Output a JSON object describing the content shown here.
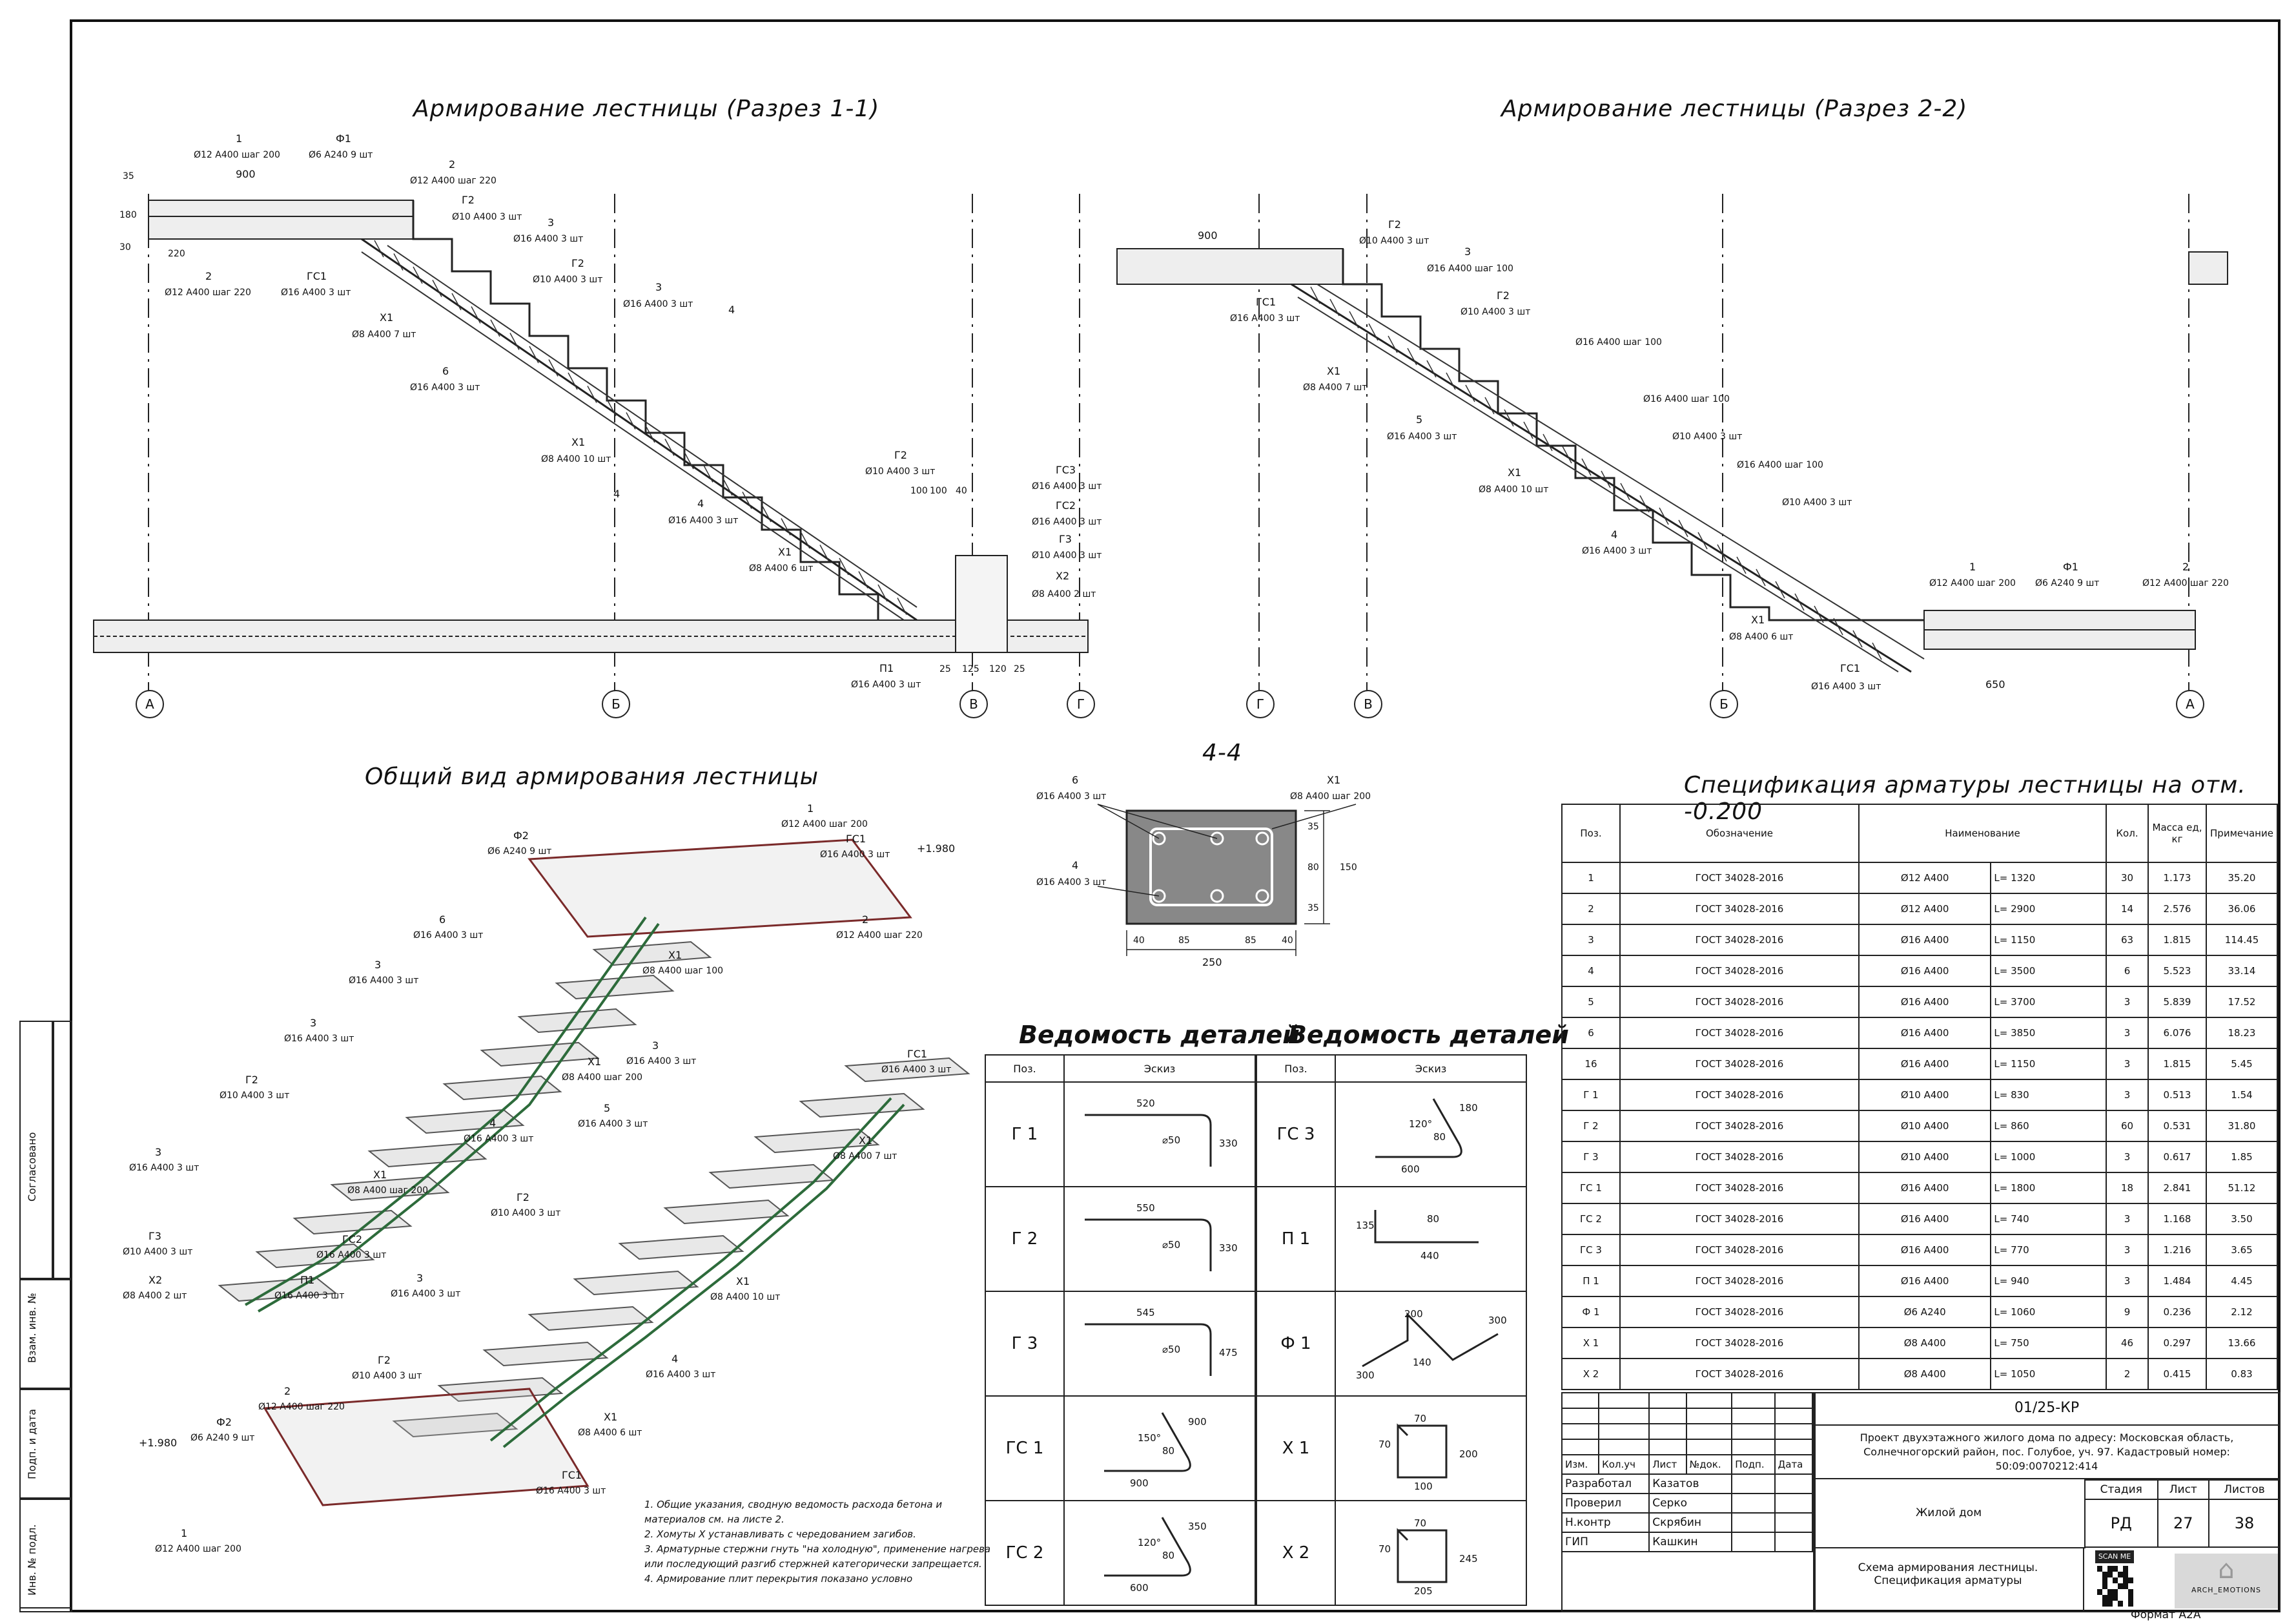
{
  "titles": {
    "section_1_1": "Армирование лестницы (Разрез 1-1)",
    "section_2_2": "Армирование лестницы (Разрез 2-2)",
    "general_view": "Общий вид армирования лестницы",
    "section_4_4": "4-4",
    "spec": "Спецификация арматуры лестницы на отм. -0.200",
    "ved_left": "Ведомость деталей",
    "ved_right": "Ведомость деталей"
  },
  "axes": {
    "s1": [
      "А",
      "Б",
      "В",
      "Г"
    ],
    "s2": [
      "Г",
      "В",
      "Б",
      "А"
    ]
  },
  "s1_labels": {
    "p1": "1",
    "p1_t": "Ø12 А400 шаг 200",
    "f1": "Ф1",
    "f1_t": "Ø6 А240  9 шт",
    "d900": "900",
    "p2": "2",
    "p2_t": "Ø12 А400 шаг 220",
    "g2a": "Г2",
    "g2a_t": "Ø10 А400  3 шт",
    "p3a": "3",
    "p3a_t": "Ø16 А400  3 шт",
    "g2b": "Г2",
    "g2b_t": "Ø10 А400  3 шт",
    "p3b": "3",
    "p3b_t": "Ø16 А400  3 шт",
    "p2b": "2",
    "p2b_t": "Ø12 А400 шаг 220",
    "gs1": "ГС1",
    "gs1_t": "Ø16 А400  3 шт",
    "x1a": "Х1",
    "x1a_t": "Ø8 А400  7 шт",
    "p6": "6",
    "p6_t": "Ø16 А400  3 шт",
    "x1b": "Х1",
    "x1b_t": "Ø8 А400  10 шт",
    "p4": "4",
    "p4_t": "Ø16 А400  3 шт",
    "x1c": "Х1",
    "x1c_t": "Ø8 А400  6 шт",
    "g2c": "Г2",
    "g2c_t": "Ø10 А400  3 шт",
    "gs3": "ГС3",
    "gs3_t": "Ø16 А400  3 шт",
    "gs2": "ГС2",
    "gs2_t": "Ø16 А400  3 шт",
    "g3": "Г3",
    "g3_t": "Ø10 А400  3 шт",
    "x2": "Х2",
    "x2_t": "Ø8 А400  2 шт",
    "p1b": "П1",
    "p1b_t": "Ø16 А400  3 шт",
    "d35": "35",
    "d180": "180",
    "d30": "30",
    "d220": "220",
    "dims_bottom": [
      "25",
      "125",
      "120",
      "25"
    ],
    "dims_top": [
      "100",
      "100",
      "40"
    ],
    "cut": "4"
  },
  "s2_labels": {
    "d900": "900",
    "g2a": "Г2",
    "g2a_t": "Ø10 А400  3 шт",
    "p3a": "3",
    "p3a_t": "Ø16 А400 шаг 100",
    "g2b": "Г2",
    "g2b_t": "Ø10 А400  3 шт",
    "gs1": "ГС1",
    "gs1_t": "Ø16 А400  3 шт",
    "x1a": "Х1",
    "x1a_t": "Ø8 А400  7 шт",
    "p5": "5",
    "p5_t": "Ø16 А400  3 шт",
    "x1b": "Х1",
    "x1b_t": "Ø8 А400  10 шт",
    "p4": "4",
    "p4_t": "Ø16 А400  3 шт",
    "x1c": "Х1",
    "x1c_t": "Ø8 А400  6 шт",
    "gs1b": "ГС1",
    "gs1b_t": "Ø16 А400  3 шт",
    "p1": "1",
    "p1_t": "Ø12 А400 шаг 200",
    "f1": "Ф1",
    "f1_t": "Ø6 А240  9 шт",
    "p2": "2",
    "p2_t": "Ø12 А400 шаг 220",
    "d650": "650",
    "p3b_t": "Ø16 А400 шаг 100",
    "p3c_t": "Ø16 А400 шаг 100",
    "p3d_t": "Ø16 А400 шаг 100",
    "g2c_t": "Ø10 А400  3 шт",
    "g2d_t": "Ø10 А400  3 шт"
  },
  "s44": {
    "p6": "6",
    "p6_t": "Ø16 А400  3 шт",
    "x1": "Х1",
    "x1_t": "Ø8 А400 шаг 200",
    "p4": "4",
    "p4_t": "Ø16 А400  3 шт",
    "dims": [
      "40",
      "85",
      "85",
      "40"
    ],
    "total": "250",
    "vdims": [
      "35",
      "80",
      "35"
    ],
    "vtotal": "150"
  },
  "gv": {
    "items": [
      {
        "n": "Ф2",
        "t": "Ø6 А240  9 шт"
      },
      {
        "n": "1",
        "t": "Ø12 А400 шаг 200"
      },
      {
        "n": "ГС1",
        "t": "Ø16 А400  3 шт"
      },
      {
        "n": "+1.980",
        "t": ""
      },
      {
        "n": "2",
        "t": "Ø12 А400 шаг 220"
      },
      {
        "n": "6",
        "t": "Ø16 А400  3 шт"
      },
      {
        "n": "Х1",
        "t": "Ø8 А400 шаг 100"
      },
      {
        "n": "3",
        "t": "Ø16 А400  3 шт"
      },
      {
        "n": "3",
        "t": "Ø16 А400  3 шт"
      },
      {
        "n": "Х1",
        "t": "Ø8 А400 шаг 200"
      },
      {
        "n": "Г2",
        "t": "Ø10 А400  3 шт"
      },
      {
        "n": "4",
        "t": "Ø16 А400  3 шт"
      },
      {
        "n": "3",
        "t": "Ø16 А400  3 шт"
      },
      {
        "n": "Х1",
        "t": "Ø8 А400 шаг 200"
      },
      {
        "n": "Г3",
        "t": "Ø10 А400  3 шт"
      },
      {
        "n": "ГС2",
        "t": "Ø16 А400  3 шт"
      },
      {
        "n": "Х2",
        "t": "Ø8 А400  2 шт"
      },
      {
        "n": "П1",
        "t": "Ø16 А400  3 шт"
      },
      {
        "n": "3",
        "t": "Ø16 А400  3 шт"
      },
      {
        "n": "ГС1",
        "t": "Ø16 А400  3 шт"
      },
      {
        "n": "5",
        "t": "Ø16 А400  3 шт"
      },
      {
        "n": "Х1",
        "t": "Ø8 А400  7 шт"
      },
      {
        "n": "Г2",
        "t": "Ø10 А400  3 шт"
      },
      {
        "n": "3",
        "t": "Ø16 А400  3 шт"
      },
      {
        "n": "Х1",
        "t": "Ø8 А400  10 шт"
      },
      {
        "n": "Г2",
        "t": "Ø10 А400  3 шт"
      },
      {
        "n": "4",
        "t": "Ø16 А400  3 шт"
      },
      {
        "n": "2",
        "t": "Ø12 А400 шаг 220"
      },
      {
        "n": "Х1",
        "t": "Ø8 А400  6 шт"
      },
      {
        "n": "Ф2",
        "t": "Ø6 А240  9 шт"
      },
      {
        "n": "+1.980",
        "t": ""
      },
      {
        "n": "ГС1",
        "t": "Ø16 А400  3 шт"
      },
      {
        "n": "1",
        "t": "Ø12 А400 шаг 200"
      }
    ]
  },
  "notes": [
    "1. Общие указания, сводную ведомость расхода бетона и",
    "материалов см. на листе 2.",
    "2. Хомуты Х устанавливать с чередованием загибов.",
    "3. Арматурные стержни гнуть \"на холодную\", применение нагрева",
    "или последующий разгиб стержней категорически запрещается.",
    "4. Армирование плит перекрытия показано условно"
  ],
  "ved_left": {
    "headers": [
      "Поз.",
      "Эскиз"
    ],
    "rows": [
      {
        "pos": "Г 1",
        "a": "520",
        "b": "⌀50",
        "c": "330"
      },
      {
        "pos": "Г 2",
        "a": "550",
        "b": "⌀50",
        "c": "330"
      },
      {
        "pos": "Г 3",
        "a": "545",
        "b": "⌀50",
        "c": "475"
      },
      {
        "pos": "ГС 1",
        "a": "900",
        "b": "80",
        "c": "900",
        "d": "150°"
      },
      {
        "pos": "ГС 2",
        "a": "600",
        "b": "80",
        "c": "350",
        "d": "120°"
      }
    ]
  },
  "ved_right": {
    "headers": [
      "Поз.",
      "Эскиз"
    ],
    "rows": [
      {
        "pos": "ГС 3",
        "a": "600",
        "b": "80",
        "c": "180",
        "d": "120°"
      },
      {
        "pos": "П 1",
        "a": "440",
        "b": "80",
        "c": "135"
      },
      {
        "pos": "Ф 1",
        "a": "200",
        "b": "300",
        "c": "140",
        "d": "300"
      },
      {
        "pos": "Х 1",
        "a": "100",
        "b": "70",
        "c": "200",
        "d": "70"
      },
      {
        "pos": "Х 2",
        "a": "205",
        "b": "70",
        "c": "245",
        "d": "70"
      }
    ]
  },
  "spec": {
    "headers": [
      "Поз.",
      "Обозначение",
      "Наименование",
      "Кол.",
      "Масса ед, кг",
      "Примечание"
    ],
    "rows": [
      {
        "pos": "1",
        "doc": "ГОСТ 34028-2016",
        "name": "Ø12 А400",
        "len": "L= 1320",
        "qty": "30",
        "mass": "1.173",
        "note": "35.20"
      },
      {
        "pos": "2",
        "doc": "ГОСТ 34028-2016",
        "name": "Ø12 А400",
        "len": "L= 2900",
        "qty": "14",
        "mass": "2.576",
        "note": "36.06"
      },
      {
        "pos": "3",
        "doc": "ГОСТ 34028-2016",
        "name": "Ø16 А400",
        "len": "L= 1150",
        "qty": "63",
        "mass": "1.815",
        "note": "114.45"
      },
      {
        "pos": "4",
        "doc": "ГОСТ 34028-2016",
        "name": "Ø16 А400",
        "len": "L= 3500",
        "qty": "6",
        "mass": "5.523",
        "note": "33.14"
      },
      {
        "pos": "5",
        "doc": "ГОСТ 34028-2016",
        "name": "Ø16 А400",
        "len": "L= 3700",
        "qty": "3",
        "mass": "5.839",
        "note": "17.52"
      },
      {
        "pos": "6",
        "doc": "ГОСТ 34028-2016",
        "name": "Ø16 А400",
        "len": "L= 3850",
        "qty": "3",
        "mass": "6.076",
        "note": "18.23"
      },
      {
        "pos": "16",
        "doc": "ГОСТ 34028-2016",
        "name": "Ø16 А400",
        "len": "L= 1150",
        "qty": "3",
        "mass": "1.815",
        "note": "5.45"
      },
      {
        "pos": "Г 1",
        "doc": "ГОСТ 34028-2016",
        "name": "Ø10 А400",
        "len": "L= 830",
        "qty": "3",
        "mass": "0.513",
        "note": "1.54"
      },
      {
        "pos": "Г 2",
        "doc": "ГОСТ 34028-2016",
        "name": "Ø10 А400",
        "len": "L= 860",
        "qty": "60",
        "mass": "0.531",
        "note": "31.80"
      },
      {
        "pos": "Г 3",
        "doc": "ГОСТ 34028-2016",
        "name": "Ø10 А400",
        "len": "L= 1000",
        "qty": "3",
        "mass": "0.617",
        "note": "1.85"
      },
      {
        "pos": "ГС 1",
        "doc": "ГОСТ 34028-2016",
        "name": "Ø16 А400",
        "len": "L= 1800",
        "qty": "18",
        "mass": "2.841",
        "note": "51.12"
      },
      {
        "pos": "ГС 2",
        "doc": "ГОСТ 34028-2016",
        "name": "Ø16 А400",
        "len": "L= 740",
        "qty": "3",
        "mass": "1.168",
        "note": "3.50"
      },
      {
        "pos": "ГС 3",
        "doc": "ГОСТ 34028-2016",
        "name": "Ø16 А400",
        "len": "L= 770",
        "qty": "3",
        "mass": "1.216",
        "note": "3.65"
      },
      {
        "pos": "П 1",
        "doc": "ГОСТ 34028-2016",
        "name": "Ø16 А400",
        "len": "L= 940",
        "qty": "3",
        "mass": "1.484",
        "note": "4.45"
      },
      {
        "pos": "Ф 1",
        "doc": "ГОСТ 34028-2016",
        "name": "Ø6 А240",
        "len": "L= 1060",
        "qty": "9",
        "mass": "0.236",
        "note": "2.12"
      },
      {
        "pos": "Х 1",
        "doc": "ГОСТ 34028-2016",
        "name": "Ø8 А400",
        "len": "L= 750",
        "qty": "46",
        "mass": "0.297",
        "note": "13.66"
      },
      {
        "pos": "Х 2",
        "doc": "ГОСТ 34028-2016",
        "name": "Ø8 А400",
        "len": "L= 1050",
        "qty": "2",
        "mass": "0.415",
        "note": "0.83"
      }
    ]
  },
  "titleblock": {
    "code": "01/25-КР",
    "project": "Проект двухэтажного жилого дома по адресу: Московская область, Солнечногорский район, пос. Голубое, уч. 97. Кадастровый номер: 50:09:0070212:414",
    "headers": [
      "Изм.",
      "Кол.уч",
      "Лист",
      "№док.",
      "Подп.",
      "Дата"
    ],
    "roles": [
      {
        "role": "Разработал",
        "name": "Казатов"
      },
      {
        "role": "Проверил",
        "name": "Серко"
      },
      {
        "role": "Н.контр",
        "name": "Скрябин"
      },
      {
        "role": "ГИП",
        "name": "Кашкин"
      }
    ],
    "object": "Жилой дом",
    "stage_h": "Стадия",
    "sheet_h": "Лист",
    "sheets_h": "Листов",
    "stage": "РД",
    "sheet": "27",
    "sheets": "38",
    "drawing": "Схема армирования лестницы. Спецификация арматуры",
    "scan": "SCAN ME",
    "company": "ARCH_EMOTIONS",
    "format": "Формат А2А"
  },
  "side": {
    "agreed": "Согласовано",
    "inv_replace": "Взам. инв. №",
    "sign_date": "Подп. и дата",
    "inv_orig": "Инв. № подл."
  }
}
